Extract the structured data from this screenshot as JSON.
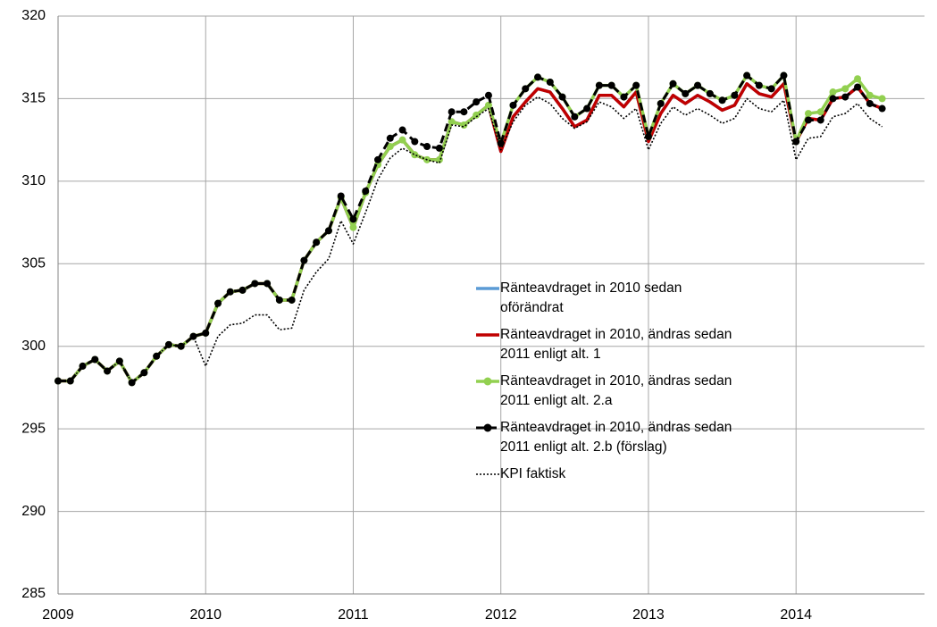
{
  "chart_data": {
    "type": "line",
    "categories": [
      "2009",
      null,
      null,
      null,
      null,
      null,
      null,
      null,
      null,
      null,
      null,
      null,
      "2010",
      null,
      null,
      null,
      null,
      null,
      null,
      null,
      null,
      null,
      null,
      null,
      "2011",
      null,
      null,
      null,
      null,
      null,
      null,
      null,
      null,
      null,
      null,
      null,
      "2012",
      null,
      null,
      null,
      null,
      null,
      null,
      null,
      null,
      null,
      null,
      null,
      "2013",
      null,
      null,
      null,
      null,
      null,
      null,
      null,
      null,
      null,
      null,
      null,
      "2014",
      null,
      null,
      null,
      null,
      null,
      null,
      null
    ],
    "ylim": [
      285,
      320
    ],
    "yticks": [
      285,
      290,
      295,
      300,
      305,
      310,
      315,
      320
    ],
    "grid": true,
    "series": [
      {
        "name": "Ränteavdraget in 2010 sedan oförändrat",
        "color": "#5b9bd5",
        "style": "solid",
        "markers": false,
        "values": [
          297.9,
          297.9,
          298.8,
          299.2,
          298.5,
          299.1,
          297.8,
          298.4,
          299.4,
          300.1,
          300,
          300.6,
          300.8,
          302.6,
          303.3,
          303.4,
          303.8,
          303.8,
          302.8,
          302.8,
          305.2,
          306.3,
          307.0,
          309.0,
          307.2,
          309.3,
          311.0,
          312.1,
          312.5,
          311.6,
          311.3,
          311.3,
          313.6,
          313.4,
          314.0,
          314.6,
          311.8,
          313.9,
          314.8,
          315.6,
          315.4,
          314.4,
          313.3,
          313.7,
          315.2,
          315.2,
          314.5,
          315.4,
          312.4,
          314.1,
          315.2,
          314.7,
          315.2,
          314.8,
          314.3,
          314.6,
          315.9,
          315.3,
          315.1,
          315.9,
          312.4,
          313.8,
          313.7,
          315.0,
          315.1,
          315.7,
          314.7,
          314.4
        ]
      },
      {
        "name": "Ränteavdraget in 2010, ändras sedan 2011 enligt alt. 1",
        "color": "#c00000",
        "style": "solid",
        "markers": false,
        "values": [
          297.9,
          297.9,
          298.8,
          299.2,
          298.5,
          299.1,
          297.8,
          298.4,
          299.4,
          300.1,
          300,
          300.6,
          300.8,
          302.6,
          303.3,
          303.4,
          303.8,
          303.8,
          302.8,
          302.8,
          305.2,
          306.3,
          307.0,
          309.0,
          307.2,
          309.3,
          311.0,
          312.1,
          312.5,
          311.6,
          311.3,
          311.3,
          313.6,
          313.4,
          314.0,
          314.6,
          311.8,
          313.9,
          314.8,
          315.6,
          315.4,
          314.4,
          313.3,
          313.7,
          315.2,
          315.2,
          314.5,
          315.4,
          312.4,
          314.1,
          315.2,
          314.7,
          315.2,
          314.8,
          314.3,
          314.6,
          315.9,
          315.3,
          315.1,
          315.9,
          312.4,
          313.8,
          313.7,
          315.0,
          315.1,
          315.7,
          314.7,
          314.4
        ]
      },
      {
        "name": "Ränteavdraget in 2010, ändras sedan 2011 enligt alt. 2.a",
        "color": "#92d050",
        "style": "solid",
        "markers": true,
        "values": [
          297.9,
          297.9,
          298.8,
          299.2,
          298.5,
          299.1,
          297.8,
          298.4,
          299.4,
          300.1,
          300,
          300.6,
          300.8,
          302.6,
          303.3,
          303.4,
          303.8,
          303.8,
          302.8,
          302.8,
          305.2,
          306.3,
          307.0,
          309.0,
          307.2,
          309.3,
          311.0,
          312.1,
          312.5,
          311.6,
          311.3,
          311.3,
          313.6,
          313.4,
          314.0,
          314.6,
          312.3,
          314.6,
          315.6,
          316.3,
          316.0,
          315.1,
          313.9,
          314.4,
          315.8,
          315.8,
          315.1,
          315.8,
          312.7,
          314.7,
          315.9,
          315.3,
          315.8,
          315.3,
          314.9,
          315.2,
          316.4,
          315.8,
          315.6,
          316.4,
          312.4,
          314.1,
          314.2,
          315.4,
          315.6,
          316.2,
          315.2,
          315.0
        ]
      },
      {
        "name": "Ränteavdraget in 2010, ändras sedan 2011 enligt alt. 2.b (förslag)",
        "color": "#000000",
        "style": "dashed",
        "markers": true,
        "values": [
          297.9,
          297.9,
          298.8,
          299.2,
          298.5,
          299.1,
          297.8,
          298.4,
          299.4,
          300.1,
          300,
          300.6,
          300.8,
          302.6,
          303.3,
          303.4,
          303.8,
          303.8,
          302.8,
          302.8,
          305.2,
          306.3,
          307.0,
          309.1,
          307.7,
          309.4,
          311.3,
          312.6,
          313.1,
          312.4,
          312.1,
          312.0,
          314.2,
          314.2,
          314.8,
          315.2,
          312.3,
          314.6,
          315.6,
          316.3,
          316.0,
          315.1,
          313.9,
          314.4,
          315.8,
          315.8,
          315.1,
          315.8,
          312.7,
          314.7,
          315.9,
          315.3,
          315.8,
          315.3,
          314.9,
          315.2,
          316.4,
          315.8,
          315.6,
          316.4,
          312.4,
          313.7,
          313.7,
          315.0,
          315.1,
          315.7,
          314.7,
          314.4
        ]
      },
      {
        "name": "KPI faktisk",
        "color": "#000000",
        "style": "dotted",
        "markers": false,
        "values": [
          297.9,
          297.9,
          298.8,
          299.2,
          298.5,
          299.1,
          297.8,
          298.4,
          299.4,
          300.1,
          300,
          300.6,
          298.8,
          300.6,
          301.3,
          301.4,
          301.9,
          301.9,
          301.0,
          301.1,
          303.4,
          304.5,
          305.3,
          307.6,
          306.2,
          308.1,
          310.1,
          311.4,
          312.0,
          311.6,
          311.3,
          311.1,
          313.4,
          313.3,
          313.9,
          314.4,
          311.9,
          313.6,
          314.6,
          315.1,
          314.7,
          313.8,
          313.2,
          313.6,
          314.8,
          314.5,
          313.8,
          314.4,
          311.9,
          313.5,
          314.5,
          314.0,
          314.4,
          314.0,
          313.5,
          313.8,
          315.0,
          314.4,
          314.2,
          314.9,
          311.3,
          312.6,
          312.7,
          313.9,
          314.1,
          314.7,
          313.8,
          313.3
        ]
      }
    ]
  }
}
